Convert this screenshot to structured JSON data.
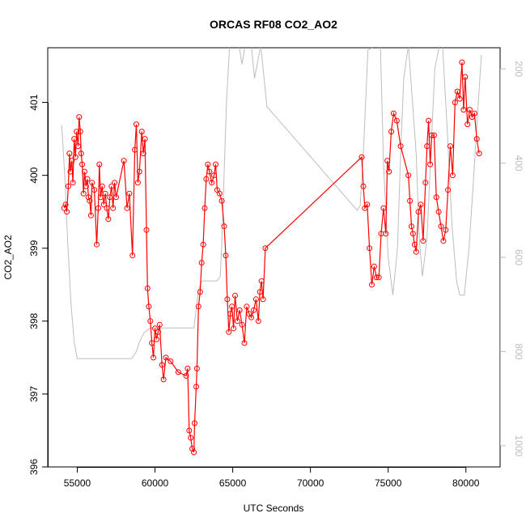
{
  "chart_data": {
    "type": "line",
    "title": "ORCAS RF08 CO2_AO2",
    "xlabel": "UTC Seconds",
    "ylabel": "CO2_AO2",
    "xlim": [
      53100,
      82200
    ],
    "ylim": [
      396,
      401.75
    ],
    "y2lim": [
      1045,
      155
    ],
    "x_ticks": [
      55000,
      60000,
      65000,
      70000,
      75000,
      80000
    ],
    "y_ticks": [
      396,
      397,
      398,
      399,
      400,
      401
    ],
    "y2_ticks": [
      200,
      400,
      600,
      800,
      1000
    ],
    "series": [
      {
        "role": "co2",
        "color": "#ff0000",
        "marker": "open-circle",
        "points": [
          [
            54150,
            399.55
          ],
          [
            54250,
            399.6
          ],
          [
            54330,
            399.5
          ],
          [
            54420,
            399.85
          ],
          [
            54500,
            400.3
          ],
          [
            54560,
            400.05
          ],
          [
            54650,
            400.2
          ],
          [
            54720,
            399.9
          ],
          [
            54800,
            400.5
          ],
          [
            54880,
            400.25
          ],
          [
            54960,
            400.6
          ],
          [
            55050,
            400.4
          ],
          [
            55120,
            400.8
          ],
          [
            55200,
            400.6
          ],
          [
            55250,
            400.3
          ],
          [
            55320,
            400.15
          ],
          [
            55400,
            399.75
          ],
          [
            55470,
            400.05
          ],
          [
            55560,
            399.85
          ],
          [
            55650,
            399.95
          ],
          [
            55720,
            399.7
          ],
          [
            55800,
            399.65
          ],
          [
            55880,
            399.45
          ],
          [
            55950,
            399.9
          ],
          [
            56100,
            399.8
          ],
          [
            56250,
            399.05
          ],
          [
            56350,
            399.55
          ],
          [
            56420,
            400.15
          ],
          [
            56500,
            399.7
          ],
          [
            56600,
            399.85
          ],
          [
            56700,
            399.6
          ],
          [
            56800,
            399.75
          ],
          [
            56900,
            399.55
          ],
          [
            57000,
            399.4
          ],
          [
            57100,
            399.7
          ],
          [
            57200,
            399.85
          ],
          [
            57300,
            399.55
          ],
          [
            57400,
            399.9
          ],
          [
            57500,
            399.7
          ],
          [
            58000,
            400.2
          ],
          [
            58200,
            399.55
          ],
          [
            58350,
            399.75
          ],
          [
            58550,
            398.9
          ],
          [
            58700,
            400.35
          ],
          [
            58800,
            400.7
          ],
          [
            58900,
            399.9
          ],
          [
            59000,
            400.05
          ],
          [
            59150,
            400.6
          ],
          [
            59250,
            400.3
          ],
          [
            59350,
            400.5
          ],
          [
            59450,
            399.25
          ],
          [
            59520,
            398.45
          ],
          [
            59600,
            398.2
          ],
          [
            59700,
            398.0
          ],
          [
            59800,
            397.7
          ],
          [
            59900,
            397.5
          ],
          [
            60000,
            397.9
          ],
          [
            60100,
            397.75
          ],
          [
            60200,
            397.85
          ],
          [
            60300,
            397.95
          ],
          [
            60450,
            397.4
          ],
          [
            60550,
            397.2
          ],
          [
            60700,
            397.5
          ],
          [
            61000,
            397.45
          ],
          [
            61500,
            397.3
          ],
          [
            62000,
            397.25
          ],
          [
            62100,
            397.35
          ],
          [
            62200,
            396.5
          ],
          [
            62300,
            396.4
          ],
          [
            62400,
            396.25
          ],
          [
            62500,
            396.2
          ],
          [
            62550,
            396.6
          ],
          [
            62650,
            397.1
          ],
          [
            62700,
            397.35
          ],
          [
            62800,
            398.2
          ],
          [
            62900,
            398.4
          ],
          [
            63000,
            398.8
          ],
          [
            63100,
            399.05
          ],
          [
            63200,
            399.55
          ],
          [
            63300,
            399.95
          ],
          [
            63400,
            400.15
          ],
          [
            63500,
            400.05
          ],
          [
            63650,
            399.9
          ],
          [
            63800,
            400.0
          ],
          [
            63900,
            400.15
          ],
          [
            64000,
            399.8
          ],
          [
            64150,
            399.75
          ],
          [
            64300,
            399.65
          ],
          [
            64450,
            399.3
          ],
          [
            64550,
            398.9
          ],
          [
            64650,
            398.3
          ],
          [
            64750,
            397.85
          ],
          [
            64850,
            398.1
          ],
          [
            64950,
            398.2
          ],
          [
            65050,
            397.9
          ],
          [
            65150,
            398.35
          ],
          [
            65300,
            398.0
          ],
          [
            65450,
            398.15
          ],
          [
            65600,
            397.95
          ],
          [
            65750,
            397.7
          ],
          [
            65900,
            398.2
          ],
          [
            66050,
            398.1
          ],
          [
            66200,
            398.05
          ],
          [
            66350,
            398.15
          ],
          [
            66500,
            398.3
          ],
          [
            66650,
            398.0
          ],
          [
            66750,
            398.4
          ],
          [
            66850,
            398.55
          ],
          [
            66950,
            398.3
          ],
          [
            67100,
            399.0
          ],
          [
            73300,
            400.25
          ],
          [
            73400,
            399.85
          ],
          [
            73500,
            399.55
          ],
          [
            73650,
            399.6
          ],
          [
            73800,
            399.0
          ],
          [
            73950,
            398.5
          ],
          [
            74100,
            398.75
          ],
          [
            74250,
            398.6
          ],
          [
            74400,
            398.6
          ],
          [
            74550,
            399.2
          ],
          [
            74700,
            399.55
          ],
          [
            74850,
            399.2
          ],
          [
            74950,
            400.2
          ],
          [
            75050,
            400.05
          ],
          [
            75200,
            400.6
          ],
          [
            75350,
            400.85
          ],
          [
            75550,
            400.75
          ],
          [
            75800,
            400.4
          ],
          [
            76300,
            400.0
          ],
          [
            76400,
            399.65
          ],
          [
            76500,
            399.3
          ],
          [
            76600,
            399.2
          ],
          [
            76700,
            399.05
          ],
          [
            76800,
            398.95
          ],
          [
            76950,
            399.5
          ],
          [
            77100,
            399.6
          ],
          [
            77250,
            399.1
          ],
          [
            77400,
            399.9
          ],
          [
            77500,
            400.4
          ],
          [
            77600,
            400.75
          ],
          [
            77700,
            400.15
          ],
          [
            77800,
            400.55
          ],
          [
            77950,
            400.55
          ],
          [
            78100,
            399.7
          ],
          [
            78250,
            399.5
          ],
          [
            78400,
            399.3
          ],
          [
            78550,
            399.1
          ],
          [
            78700,
            399.25
          ],
          [
            78850,
            399.8
          ],
          [
            79000,
            400.4
          ],
          [
            79150,
            400.0
          ],
          [
            79300,
            401.0
          ],
          [
            79450,
            401.15
          ],
          [
            79600,
            401.05
          ],
          [
            79750,
            401.55
          ],
          [
            79850,
            400.9
          ],
          [
            79950,
            401.35
          ],
          [
            80100,
            400.7
          ],
          [
            80250,
            400.9
          ],
          [
            80400,
            400.8
          ],
          [
            80550,
            400.85
          ],
          [
            80700,
            400.5
          ],
          [
            80850,
            400.3
          ]
        ]
      },
      {
        "role": "altitude",
        "color": "#bdbdbd",
        "points": [
          [
            54000,
            320
          ],
          [
            54200,
            430
          ],
          [
            54400,
            580
          ],
          [
            54600,
            700
          ],
          [
            54800,
            780
          ],
          [
            55000,
            815
          ],
          [
            55200,
            815
          ],
          [
            56000,
            815
          ],
          [
            57000,
            815
          ],
          [
            58000,
            815
          ],
          [
            58500,
            815
          ],
          [
            58800,
            800
          ],
          [
            59000,
            780
          ],
          [
            59300,
            760
          ],
          [
            59700,
            750
          ],
          [
            60200,
            750
          ],
          [
            61000,
            750
          ],
          [
            62000,
            750
          ],
          [
            62500,
            750
          ],
          [
            62800,
            670
          ],
          [
            63000,
            650
          ],
          [
            64000,
            650
          ],
          [
            64200,
            640
          ],
          [
            64300,
            570
          ],
          [
            64600,
            270
          ],
          [
            64800,
            150
          ],
          [
            65400,
            150
          ],
          [
            65600,
            190
          ],
          [
            65800,
            150
          ],
          [
            66200,
            150
          ],
          [
            66400,
            220
          ],
          [
            66800,
            150
          ],
          [
            67200,
            280
          ],
          [
            73000,
            500
          ],
          [
            73200,
            490
          ],
          [
            73400,
            380
          ],
          [
            73700,
            160
          ],
          [
            74200,
            150
          ],
          [
            74500,
            150
          ],
          [
            74700,
            400
          ],
          [
            75000,
            600
          ],
          [
            75300,
            680
          ],
          [
            75600,
            580
          ],
          [
            75800,
            380
          ],
          [
            76000,
            220
          ],
          [
            76300,
            150
          ],
          [
            76800,
            380
          ],
          [
            77000,
            560
          ],
          [
            77200,
            640
          ],
          [
            77500,
            560
          ],
          [
            77800,
            340
          ],
          [
            78000,
            200
          ],
          [
            78300,
            150
          ],
          [
            78500,
            150
          ],
          [
            78800,
            330
          ],
          [
            79100,
            530
          ],
          [
            79400,
            650
          ],
          [
            79600,
            680
          ],
          [
            79900,
            680
          ],
          [
            80200,
            580
          ],
          [
            80500,
            430
          ],
          [
            80800,
            270
          ],
          [
            81000,
            170
          ]
        ]
      }
    ]
  }
}
